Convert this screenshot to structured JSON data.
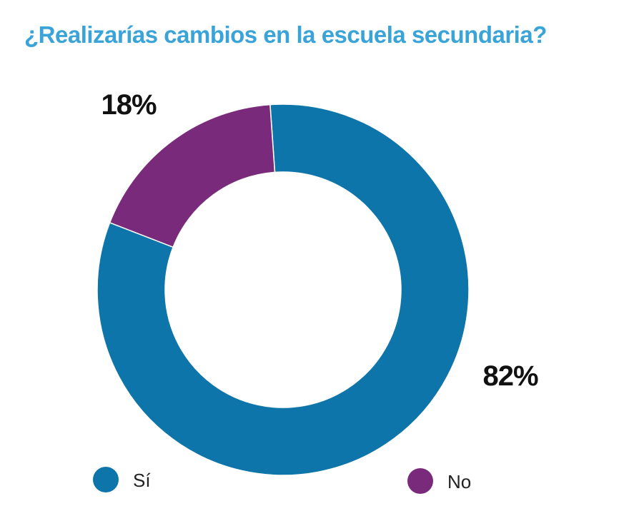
{
  "title": "¿Realizarías cambios en la escuela secundaria?",
  "colors": {
    "title": "#3aa4d9",
    "si": "#0e75aa",
    "no": "#7a2a7a"
  },
  "chart_data": {
    "type": "pie",
    "variant": "donut",
    "title": "¿Realizarías cambios en la escuela secundaria?",
    "legend_position": "bottom",
    "series": [
      {
        "name": "Sí",
        "value": 82,
        "label": "82%",
        "color": "#0e75aa"
      },
      {
        "name": "No",
        "value": 18,
        "label": "18%",
        "color": "#7a2a7a"
      }
    ]
  }
}
